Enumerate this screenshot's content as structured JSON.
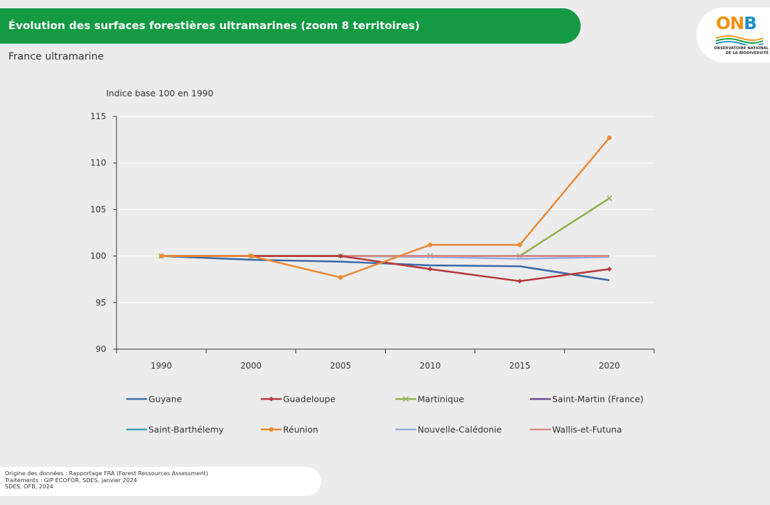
{
  "header": {
    "title": "Évolution des surfaces forestières ultramarines (zoom 8 territoires)",
    "subtitle": "France ultramarine"
  },
  "logo": {
    "mark_1": "ON",
    "mark_2": "B",
    "line_1": "OBSERVATOIRE NATIONAL",
    "line_2": "DE LA BIODIVERSITÉ"
  },
  "chart_data": {
    "type": "line",
    "ylabel": "Indice base 100 en 1990",
    "ylim": [
      90,
      115
    ],
    "yticks": [
      90,
      95,
      100,
      105,
      110,
      115
    ],
    "categories": [
      "1990",
      "2000",
      "2005",
      "2010",
      "2015",
      "2020"
    ],
    "grid": "horizontal",
    "legend_position": "bottom",
    "series": [
      {
        "name": "Guyane",
        "color": "#3a6aa8",
        "marker": "none",
        "values": [
          100,
          99.6,
          99.4,
          99.0,
          98.9,
          97.4
        ]
      },
      {
        "name": "Guadeloupe",
        "color": "#b53a3a",
        "marker": "diamond",
        "values": [
          100,
          100,
          100,
          98.6,
          97.3,
          98.6
        ]
      },
      {
        "name": "Martinique",
        "color": "#8db14a",
        "marker": "x",
        "values": [
          100,
          100,
          100,
          100,
          100,
          106.2
        ]
      },
      {
        "name": "Saint-Martin (France)",
        "color": "#6a4b8f",
        "marker": "none",
        "values": [
          100,
          100,
          100,
          100,
          100,
          100
        ]
      },
      {
        "name": "Saint-Barthélemy",
        "color": "#3aa0bb",
        "marker": "none",
        "values": [
          100,
          100,
          100,
          100,
          100,
          100
        ]
      },
      {
        "name": "Réunion",
        "color": "#ea8a35",
        "marker": "circle",
        "values": [
          100,
          100,
          97.7,
          101.2,
          101.2,
          112.7
        ]
      },
      {
        "name": "Nouvelle-Calédonie",
        "color": "#97abd8",
        "marker": "none",
        "values": [
          100,
          100,
          100,
          99.9,
          99.7,
          99.9
        ]
      },
      {
        "name": "Wallis-et-Futuna",
        "color": "#d98a87",
        "marker": "none",
        "values": [
          100,
          100,
          100,
          100,
          100,
          100
        ]
      }
    ]
  },
  "footer": {
    "line_1": "Origine des données : Rapportage FRA (Forest Ressources Assessment)",
    "line_2": "Traitements : GIP ECOFOR, SDES, janvier 2024",
    "line_3": "SDES, OFB, 2024"
  }
}
